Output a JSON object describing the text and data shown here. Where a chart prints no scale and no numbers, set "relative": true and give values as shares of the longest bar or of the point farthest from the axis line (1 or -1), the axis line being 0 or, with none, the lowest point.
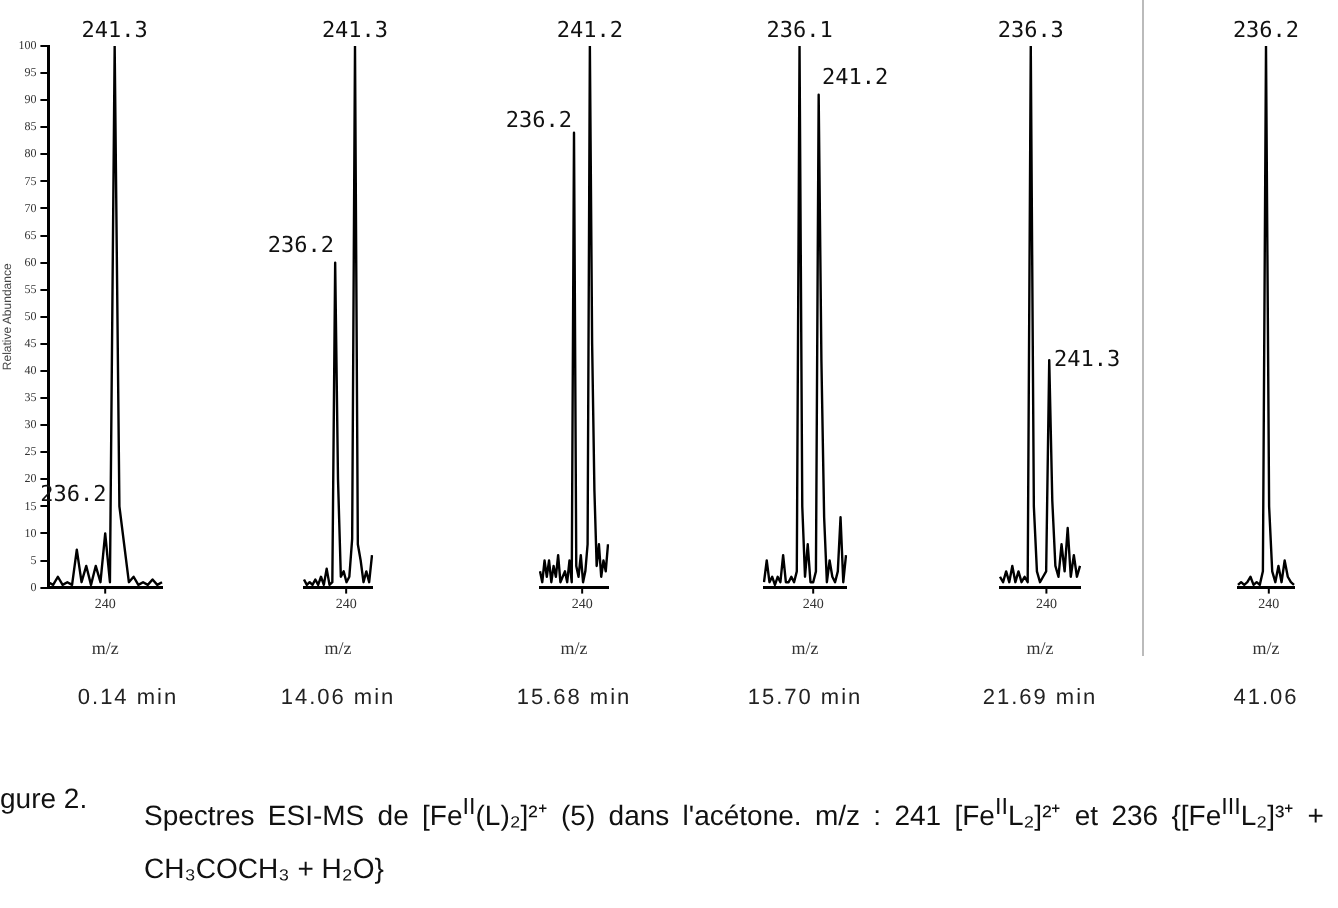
{
  "chart_data": [
    {
      "type": "line",
      "title": "0.14 min",
      "ylabel": "Relative Abundance",
      "xlabel": "m/z",
      "ylim": [
        0,
        100
      ],
      "yticks": [
        0,
        5,
        10,
        15,
        20,
        25,
        30,
        35,
        40,
        45,
        50,
        55,
        60,
        65,
        70,
        75,
        80,
        85,
        90,
        95,
        100
      ],
      "marker": "none",
      "categories": [
        null,
        null,
        null,
        null,
        null,
        null,
        null,
        null,
        null,
        null,
        null,
        null,
        null,
        null,
        null,
        null,
        null,
        null,
        null,
        null,
        null,
        null,
        null,
        null,
        null
      ],
      "series": [
        {
          "color": "#000000",
          "values": [
            1,
            0.5,
            2,
            0.5,
            1,
            0.5,
            7,
            1,
            4,
            0.5,
            4,
            1,
            10,
            1,
            100,
            15,
            8,
            1,
            2,
            0.5,
            1,
            0.5,
            1.5,
            0.5,
            1
          ]
        }
      ],
      "annotations": [
        {
          "text": "241.3",
          "y": 100
        },
        "240",
        "236.2"
      ]
    },
    {
      "type": "line",
      "title": "14.06 min",
      "xlabel": "m/z",
      "relative": true,
      "tick_labels": "x",
      "marker": "none",
      "categories": [
        null,
        null,
        null,
        null,
        null,
        null,
        null,
        null,
        null,
        null,
        null,
        null,
        null,
        null,
        null,
        null,
        null,
        null,
        null,
        null,
        null,
        null,
        null,
        null,
        null
      ],
      "series": [
        {
          "color": "#000000",
          "values": [
            0.015,
            0.005,
            0.01,
            0.005,
            0.015,
            0.005,
            0.02,
            0.005,
            0.035,
            0.005,
            0.01,
            0.6,
            0.2,
            0.02,
            0.03,
            0.01,
            0.02,
            0.09,
            1,
            0.08,
            0.05,
            0.01,
            0.03,
            0.01,
            0.06
          ]
        }
      ],
      "annotations": [
        {
          "text": "241.3",
          "y": 1
        },
        "240",
        "236.2"
      ]
    },
    {
      "type": "line",
      "title": "15.68 min",
      "xlabel": "m/z",
      "relative": true,
      "tick_labels": "x",
      "marker": "none",
      "categories": [
        null,
        null,
        null,
        null,
        null,
        null,
        null,
        null,
        null,
        null,
        null,
        null,
        null,
        null,
        null,
        null,
        null,
        null,
        null,
        null,
        null,
        null,
        null,
        null,
        null,
        null,
        null,
        null,
        null,
        null,
        null
      ],
      "series": [
        {
          "color": "#000000",
          "values": [
            0.03,
            0.01,
            0.05,
            0.02,
            0.05,
            0.01,
            0.04,
            0.02,
            0.06,
            0.01,
            0.02,
            0.03,
            0.01,
            0.05,
            0.01,
            0.84,
            0.04,
            0.02,
            0.06,
            0.01,
            0.03,
            0.08,
            1,
            0.45,
            0.18,
            0.04,
            0.08,
            0.02,
            0.05,
            0.03,
            0.08
          ]
        }
      ],
      "annotations": [
        {
          "text": "241.2",
          "y": 1
        },
        "240",
        "236.2"
      ]
    },
    {
      "type": "line",
      "title": "15.70 min",
      "xlabel": "m/z",
      "relative": true,
      "tick_labels": "x",
      "marker": "none",
      "categories": [
        null,
        null,
        null,
        null,
        null,
        null,
        null,
        null,
        null,
        null,
        null,
        null,
        null,
        null,
        null,
        null,
        null,
        null,
        null,
        null,
        null,
        null,
        null,
        null,
        null,
        null,
        null,
        null,
        null,
        null,
        null
      ],
      "series": [
        {
          "color": "#000000",
          "values": [
            0.01,
            0.05,
            0.01,
            0.02,
            0.005,
            0.02,
            0.01,
            0.06,
            0.01,
            0.01,
            0.02,
            0.01,
            0.03,
            1,
            0.15,
            0.02,
            0.08,
            0.01,
            0.01,
            0.03,
            0.91,
            0.42,
            0.13,
            0.01,
            0.05,
            0.02,
            0.01,
            0.03,
            0.13,
            0.01,
            0.06
          ]
        }
      ],
      "annotations": [
        {
          "text": "236.1",
          "y": 1
        },
        "240",
        "241.2"
      ]
    },
    {
      "type": "line",
      "title": "21.69 min",
      "xlabel": "m/z",
      "relative": true,
      "tick_labels": "x",
      "marker": "none",
      "categories": [
        null,
        null,
        null,
        null,
        null,
        null,
        null,
        null,
        null,
        null,
        null,
        null,
        null,
        null,
        null,
        null,
        null,
        null,
        null,
        null,
        null,
        null,
        null,
        null,
        null,
        null,
        null
      ],
      "series": [
        {
          "color": "#000000",
          "values": [
            0.02,
            0.01,
            0.03,
            0.01,
            0.04,
            0.01,
            0.03,
            0.01,
            0.02,
            0.01,
            1,
            0.15,
            0.03,
            0.01,
            0.02,
            0.03,
            0.42,
            0.16,
            0.04,
            0.02,
            0.08,
            0.03,
            0.11,
            0.02,
            0.06,
            0.02,
            0.04
          ]
        }
      ],
      "annotations": [
        {
          "text": "236.3",
          "y": 1
        },
        "240",
        "241.3"
      ]
    },
    {
      "type": "line",
      "title": "41.06",
      "xlabel": "m/z",
      "relative": true,
      "tick_labels": "x",
      "marker": "none",
      "categories": [
        null,
        null,
        null,
        null,
        null,
        null,
        null,
        null,
        null,
        null,
        null,
        null,
        null,
        null,
        null,
        null,
        null,
        null,
        null
      ],
      "series": [
        {
          "color": "#000000",
          "values": [
            0.005,
            0.01,
            0.005,
            0.01,
            0.02,
            0.005,
            0.01,
            0.005,
            0.03,
            1,
            0.15,
            0.03,
            0.01,
            0.04,
            0.01,
            0.05,
            0.02,
            0.01,
            0.005
          ]
        }
      ],
      "annotations": [
        {
          "text": "236.2",
          "y": 1
        },
        "240"
      ]
    },
    {
      "type": "other",
      "annotations": [
        "gure 2.",
        "Spectres ESI-MS de [Fe$^{II}$(L)₂]²⁺ (5) dans l'acétone. m/z : 241 [Fe$^{II}$L₂]²⁺ et 236 {[Fe$^{III}$L₂]³⁺ + CH₃COCH₃ + H₂O}"
      ]
    }
  ]
}
